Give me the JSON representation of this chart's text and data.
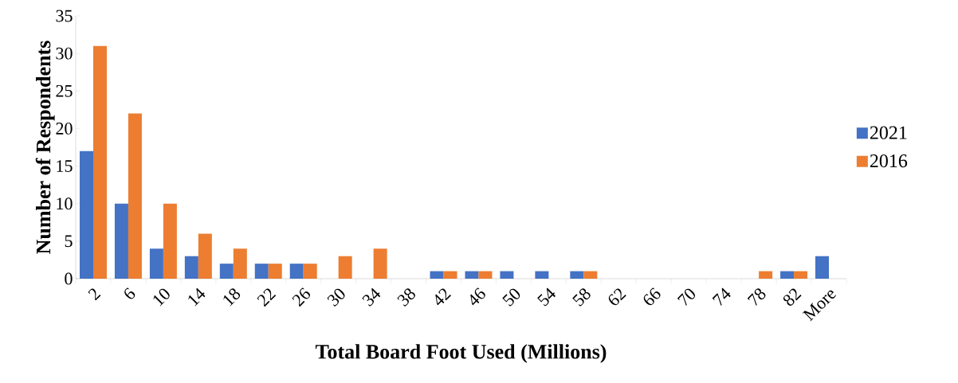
{
  "chart_data": {
    "type": "bar",
    "xlabel": "**Total Board Foot Used (Millions)**",
    "ylabel": "**Number of Respondents**",
    "categories": [
      "2",
      "6",
      "10",
      "14",
      "18",
      "22",
      "26",
      "30",
      "34",
      "38",
      "42",
      "46",
      "50",
      "54",
      "58",
      "62",
      "66",
      "70",
      "74",
      "78",
      "82",
      "More"
    ],
    "series": [
      {
        "name": "2021",
        "color": "#4472c4",
        "values": [
          17,
          10,
          4,
          3,
          2,
          2,
          2,
          0,
          0,
          0,
          1,
          1,
          1,
          1,
          1,
          0,
          0,
          0,
          0,
          0,
          1,
          3
        ]
      },
      {
        "name": "2016",
        "color": "#ed7d31",
        "values": [
          31,
          22,
          10,
          6,
          4,
          2,
          2,
          3,
          4,
          0,
          1,
          1,
          0,
          0,
          1,
          0,
          0,
          0,
          0,
          1,
          1,
          0
        ]
      }
    ],
    "ylim": [
      0,
      35
    ],
    "yticks": [
      0,
      5,
      10,
      15,
      20,
      25,
      30,
      35
    ],
    "legend": "right"
  }
}
